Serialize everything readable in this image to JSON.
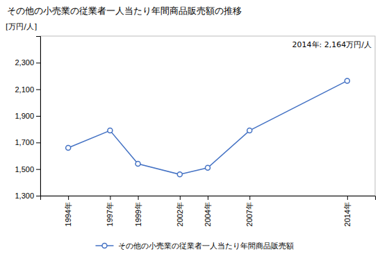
{
  "chart_data": {
    "type": "line",
    "title": "その他の小売業の従業者一人当たり年間商品販売額の推移",
    "ylabel": "[万円/人]",
    "annotation": "2014年: 2,164万円/人",
    "x": [
      1994,
      1997,
      1999,
      2002,
      2004,
      2007,
      2014
    ],
    "series": [
      {
        "name": "その他の小売業の従業者一人当たり年間商品販売額",
        "color": "#4472C4",
        "marker": "circle",
        "values": [
          1660,
          1790,
          1540,
          1460,
          1510,
          1790,
          2164
        ]
      }
    ],
    "xlim": [
      1992,
      2016
    ],
    "xticks": [
      {
        "value": 1994,
        "label": "1994年"
      },
      {
        "value": 1997,
        "label": "1997年"
      },
      {
        "value": 1999,
        "label": "1999年"
      },
      {
        "value": 2002,
        "label": "2002年"
      },
      {
        "value": 2004,
        "label": "2004年"
      },
      {
        "value": 2007,
        "label": "2007年"
      },
      {
        "value": 2014,
        "label": "2014年"
      }
    ],
    "ylim": [
      1300,
      2500
    ],
    "yticks": [
      {
        "value": 1300,
        "label": "1,300"
      },
      {
        "value": 1500,
        "label": "1,500"
      },
      {
        "value": 1700,
        "label": "1,700"
      },
      {
        "value": 1900,
        "label": "1,900"
      },
      {
        "value": 2100,
        "label": "2,100"
      },
      {
        "value": 2300,
        "label": "2,300"
      }
    ],
    "grid": false,
    "legend": "bottom"
  }
}
